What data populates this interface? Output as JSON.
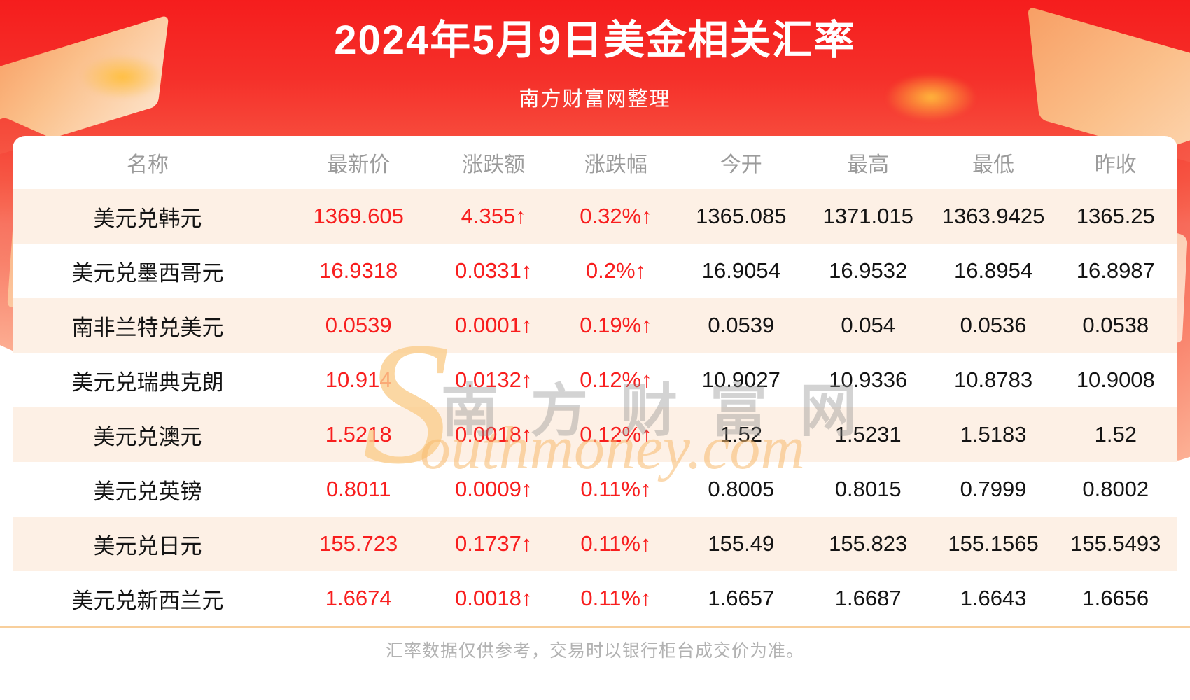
{
  "header": {
    "title": "2024年5月9日美金相关汇率",
    "subtitle": "南方财富网整理"
  },
  "table": {
    "columns": [
      "名称",
      "最新价",
      "涨跌额",
      "涨跌幅",
      "今开",
      "最高",
      "最低",
      "昨收"
    ],
    "rows": [
      {
        "name": "美元兑韩元",
        "latest": "1369.605",
        "change": "4.355↑",
        "change_pct": "0.32%↑",
        "open": "1365.085",
        "high": "1371.015",
        "low": "1363.9425",
        "prev_close": "1365.25"
      },
      {
        "name": "美元兑墨西哥元",
        "latest": "16.9318",
        "change": "0.0331↑",
        "change_pct": "0.2%↑",
        "open": "16.9054",
        "high": "16.9532",
        "low": "16.8954",
        "prev_close": "16.8987"
      },
      {
        "name": "南非兰特兑美元",
        "latest": "0.0539",
        "change": "0.0001↑",
        "change_pct": "0.19%↑",
        "open": "0.0539",
        "high": "0.054",
        "low": "0.0536",
        "prev_close": "0.0538"
      },
      {
        "name": "美元兑瑞典克朗",
        "latest": "10.914",
        "change": "0.0132↑",
        "change_pct": "0.12%↑",
        "open": "10.9027",
        "high": "10.9336",
        "low": "10.8783",
        "prev_close": "10.9008"
      },
      {
        "name": "美元兑澳元",
        "latest": "1.5218",
        "change": "0.0018↑",
        "change_pct": "0.12%↑",
        "open": "1.52",
        "high": "1.5231",
        "low": "1.5183",
        "prev_close": "1.52"
      },
      {
        "name": "美元兑英镑",
        "latest": "0.8011",
        "change": "0.0009↑",
        "change_pct": "0.11%↑",
        "open": "0.8005",
        "high": "0.8015",
        "low": "0.7999",
        "prev_close": "0.8002"
      },
      {
        "name": "美元兑日元",
        "latest": "155.723",
        "change": "0.1737↑",
        "change_pct": "0.11%↑",
        "open": "155.49",
        "high": "155.823",
        "low": "155.1565",
        "prev_close": "155.5493"
      },
      {
        "name": "美元兑新西兰元",
        "latest": "1.6674",
        "change": "0.0018↑",
        "change_pct": "0.11%↑",
        "open": "1.6657",
        "high": "1.6687",
        "low": "1.6643",
        "prev_close": "1.6656"
      }
    ]
  },
  "watermark": {
    "s": "S",
    "cn": "南方财富网",
    "en": "outhmoney.com"
  },
  "footer": {
    "disclaimer": "汇率数据仅供参考，交易时以银行柜台成交价为准。"
  },
  "colors": {
    "banner_red": "#f5302a",
    "value_red": "#f81e1e",
    "row_alt_pink": "#fdf0e5",
    "divider_orange": "#f8cf9c",
    "header_gray": "#9b9b9b",
    "footer_gray": "#b2b2b2"
  }
}
